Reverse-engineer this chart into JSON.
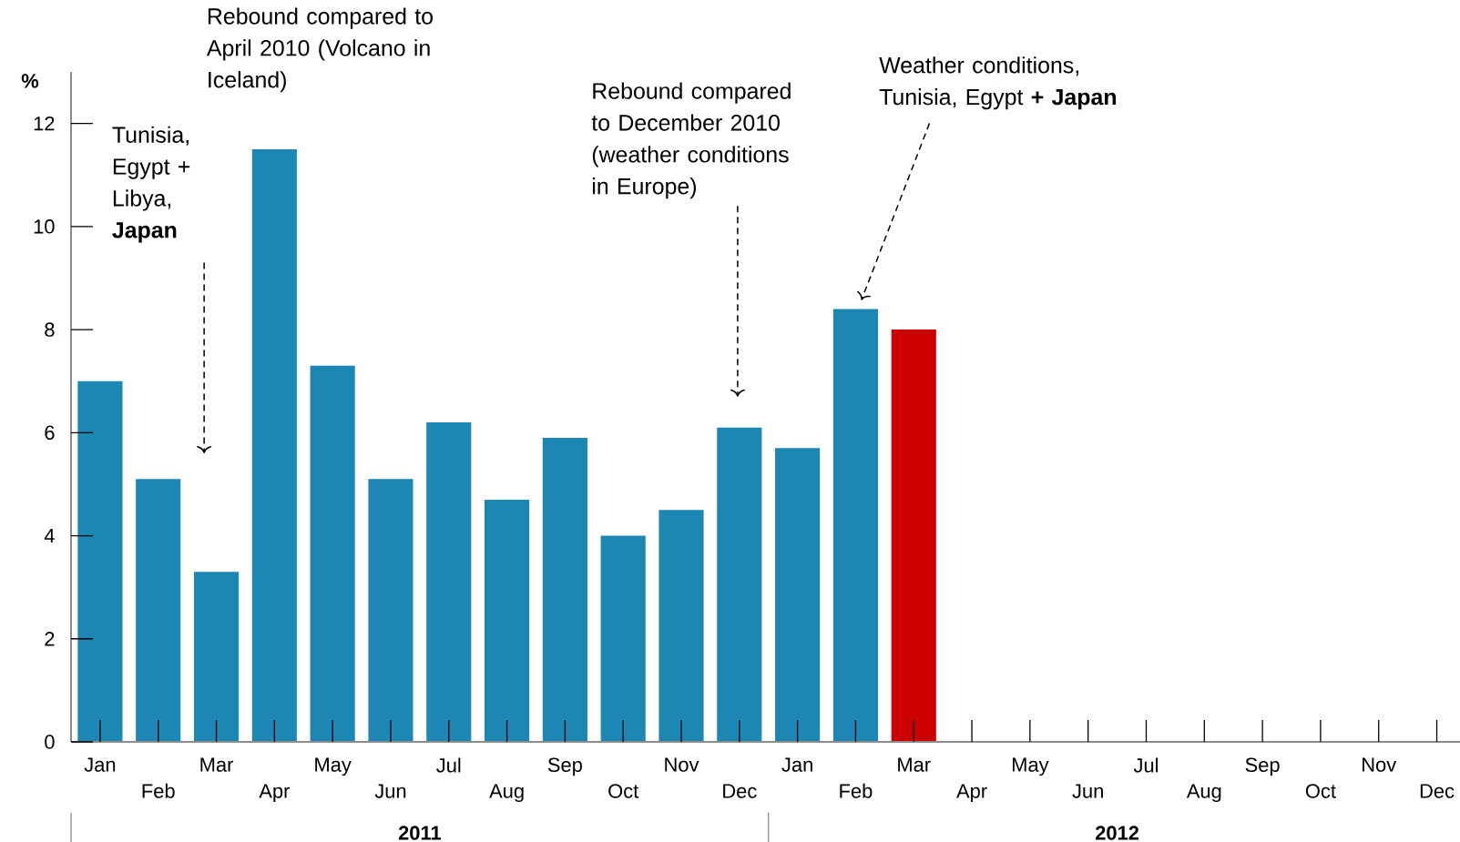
{
  "chart_data": {
    "type": "bar",
    "categories": [
      "Jan",
      "Feb",
      "Mar",
      "Apr",
      "May",
      "Jun",
      "Jul",
      "Aug",
      "Sep",
      "Oct",
      "Nov",
      "Dec",
      "Jan",
      "Feb",
      "Mar",
      "Apr",
      "May",
      "Jun",
      "Jul",
      "Aug",
      "Sep",
      "Oct",
      "Nov",
      "Dec"
    ],
    "values": [
      7.0,
      5.1,
      3.3,
      11.5,
      7.3,
      5.1,
      6.2,
      4.7,
      5.9,
      4.0,
      4.5,
      6.1,
      5.7,
      8.4,
      8.0,
      null,
      null,
      null,
      null,
      null,
      null,
      null,
      null,
      null
    ],
    "colors": [
      "#1b87b2",
      "#1b87b2",
      "#1b87b2",
      "#1b87b2",
      "#1b87b2",
      "#1b87b2",
      "#1b87b2",
      "#1b87b2",
      "#1b87b2",
      "#1b87b2",
      "#1b87b2",
      "#1b87b2",
      "#1b87b2",
      "#1b87b2",
      "#cc0000",
      "#1b87b2",
      "#1b87b2",
      "#1b87b2",
      "#1b87b2",
      "#1b87b2",
      "#1b87b2",
      "#1b87b2",
      "#1b87b2",
      "#1b87b2"
    ],
    "ylabel": "%",
    "ylim": [
      0,
      13
    ],
    "yticks": [
      0,
      2,
      4,
      6,
      8,
      10,
      12
    ],
    "annotations": [
      "Rebound compared to April 2010 (Volcano in Iceland)",
      "Tunisia, Egypt + Libya, **Japan**",
      "Rebound compared to December 2010 (weather conditions in Europe)",
      "Weather conditions, Tunisia, Egypt **+ Japan**",
      "2011",
      "2012"
    ]
  }
}
